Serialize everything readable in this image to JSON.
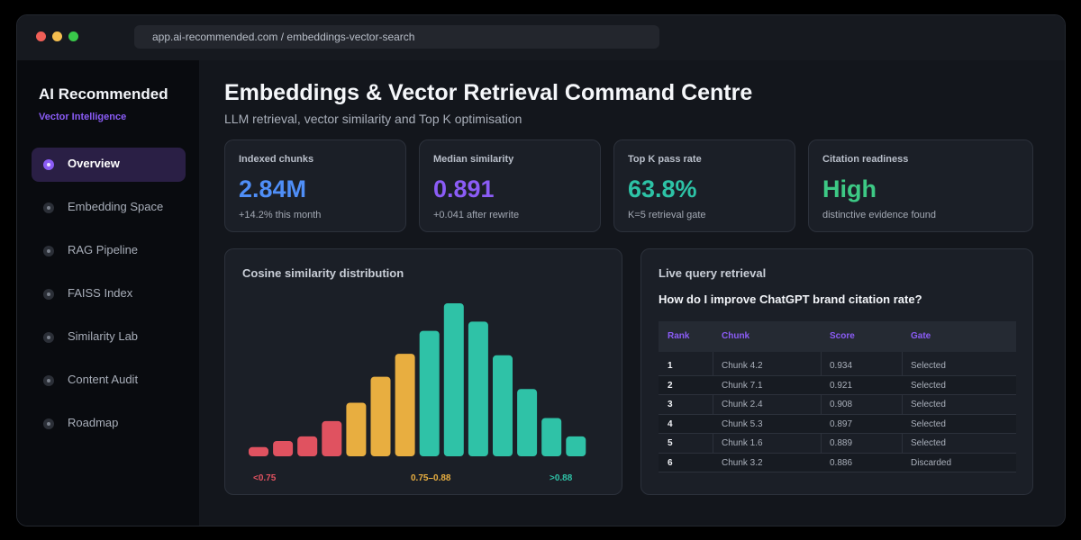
{
  "browser": {
    "url": "app.ai-recommended.com / embeddings-vector-search"
  },
  "sidebar": {
    "brand": "AI Recommended",
    "subtitle": "Vector Intelligence",
    "items": [
      {
        "label": "Overview",
        "active": true
      },
      {
        "label": "Embedding Space",
        "active": false
      },
      {
        "label": "RAG Pipeline",
        "active": false
      },
      {
        "label": "FAISS Index",
        "active": false
      },
      {
        "label": "Similarity Lab",
        "active": false
      },
      {
        "label": "Content Audit",
        "active": false
      },
      {
        "label": "Roadmap",
        "active": false
      }
    ]
  },
  "header": {
    "title": "Embeddings & Vector Retrieval Command Centre",
    "subtitle": "LLM retrieval, vector similarity and Top K optimisation"
  },
  "kpis": [
    {
      "label": "Indexed chunks",
      "value": "2.84M",
      "note": "+14.2% this month",
      "color": "#4f8ef7"
    },
    {
      "label": "Median similarity",
      "value": "0.891",
      "note": "+0.041 after rewrite",
      "color": "#8b5cf6"
    },
    {
      "label": "Top K pass rate",
      "value": "63.8%",
      "note": "K=5 retrieval gate",
      "color": "#2dc3a6"
    },
    {
      "label": "Citation readiness",
      "value": "High",
      "note": "distinctive evidence found",
      "color": "#3dc985"
    }
  ],
  "distribution": {
    "title": "Cosine similarity distribution"
  },
  "chart_data": {
    "type": "bar",
    "title": "Cosine similarity distribution",
    "values": [
      6,
      10,
      13,
      23,
      35,
      52,
      67,
      82,
      100,
      88,
      66,
      44,
      25,
      13
    ],
    "bucket_groups": [
      {
        "label": "<0.75",
        "color": "#e05260",
        "count": 4
      },
      {
        "label": "0.75–0.88",
        "color": "#e8ae40",
        "count": 3
      },
      {
        "label": ">0.88",
        "color": "#2fc2a7",
        "count": 7
      }
    ],
    "ylim": [
      0,
      100
    ],
    "grid": false
  },
  "retrieval": {
    "title": "Live query retrieval",
    "question": "How do I improve ChatGPT brand citation rate?",
    "headers": {
      "rank": "Rank",
      "chunk": "Chunk",
      "score": "Score",
      "gate": "Gate"
    },
    "rows": [
      {
        "rank": "1",
        "chunk": "Chunk 4.2",
        "score": "0.934",
        "gate": "Selected"
      },
      {
        "rank": "2",
        "chunk": "Chunk 7.1",
        "score": "0.921",
        "gate": "Selected"
      },
      {
        "rank": "3",
        "chunk": "Chunk 2.4",
        "score": "0.908",
        "gate": "Selected"
      },
      {
        "rank": "4",
        "chunk": "Chunk 5.3",
        "score": "0.897",
        "gate": "Selected"
      },
      {
        "rank": "5",
        "chunk": "Chunk 1.6",
        "score": "0.889",
        "gate": "Selected"
      },
      {
        "rank": "6",
        "chunk": "Chunk 3.2",
        "score": "0.886",
        "gate": "Discarded"
      }
    ]
  }
}
